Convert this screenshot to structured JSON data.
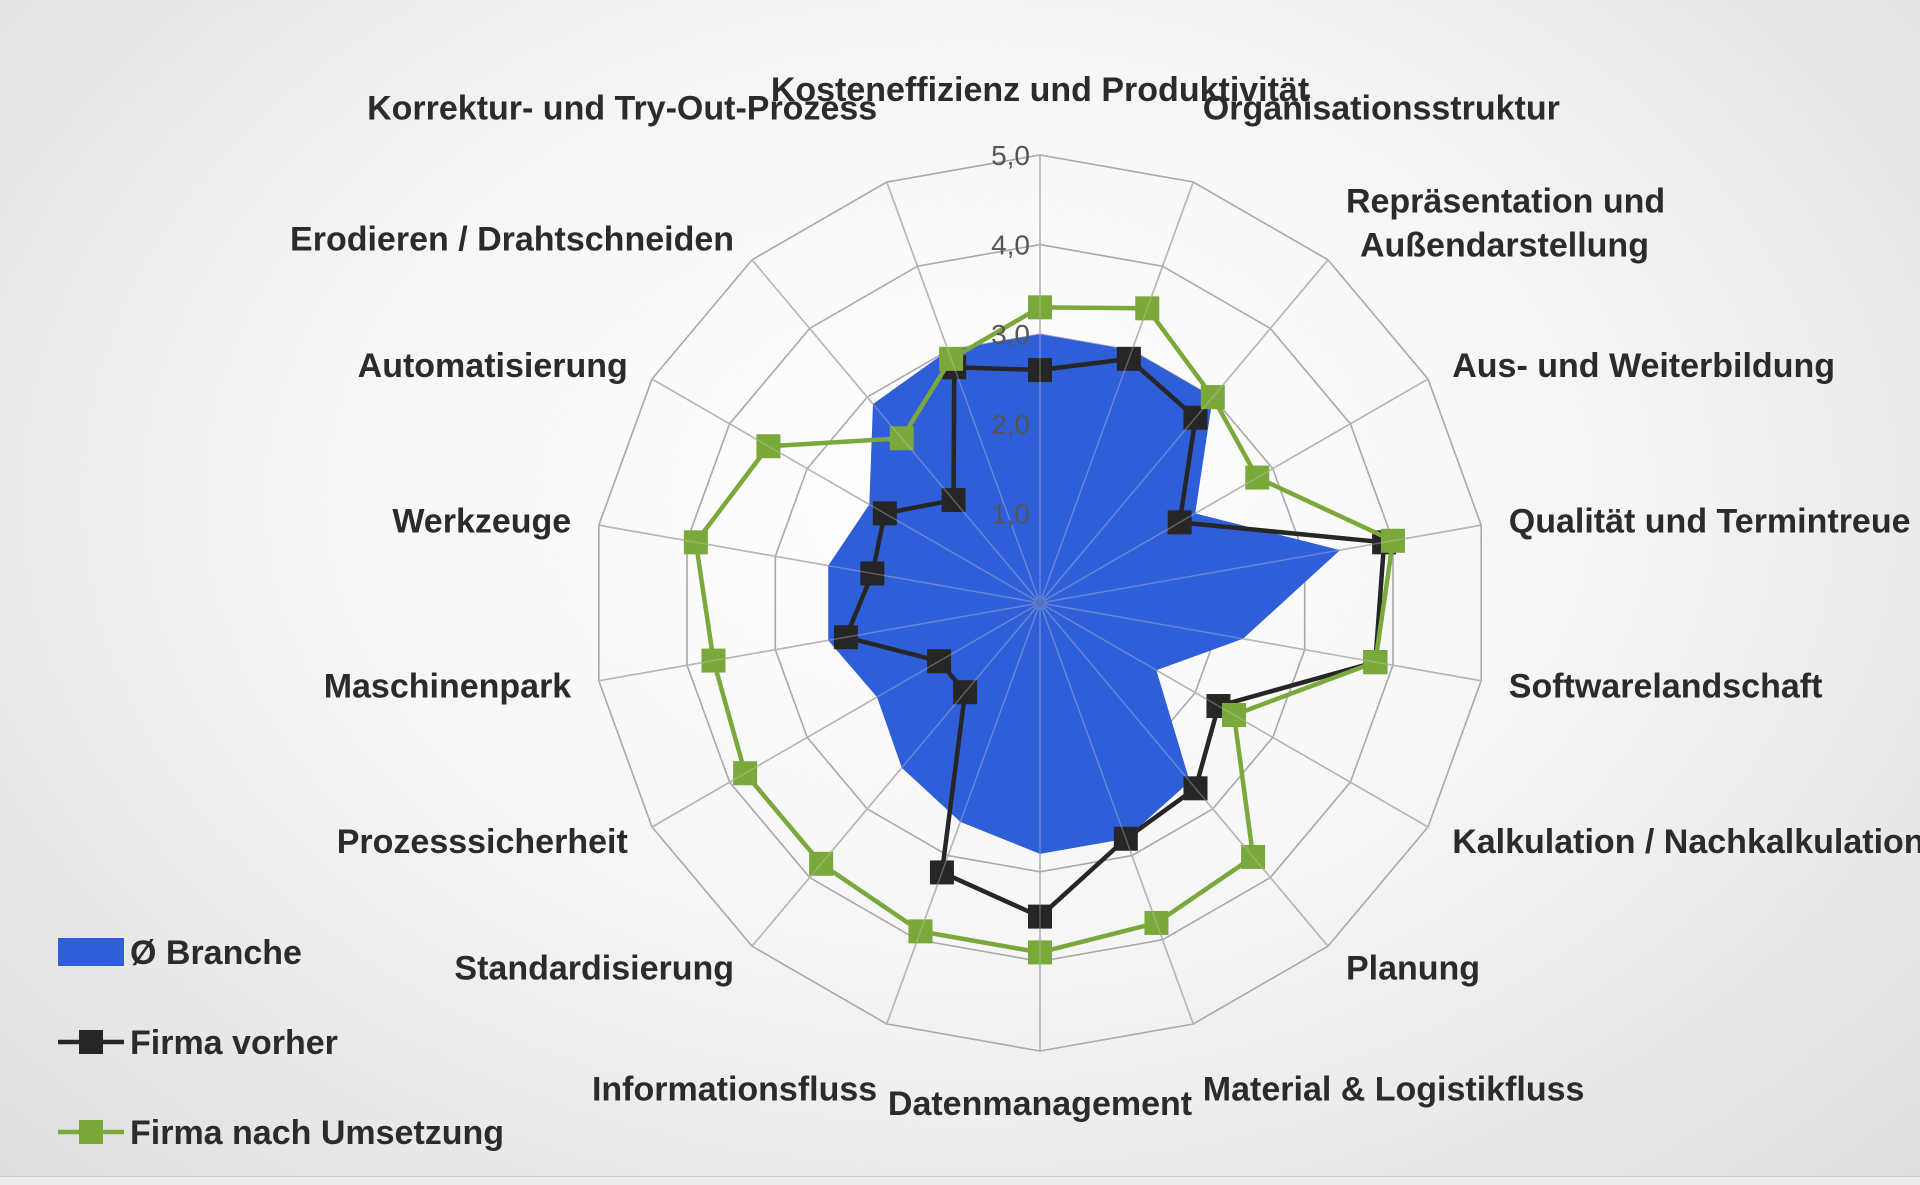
{
  "chart_data": {
    "type": "radar",
    "categories": [
      "Kosteneffizienz und Produktivität",
      "Organisationsstruktur",
      "Repräsentation und Außendarstellung",
      "Aus- und Weiterbildung",
      "Qualität und Termintreue",
      "Softwarelandschaft",
      "Kalkulation / Nachkalkulation",
      "Planung",
      "Material & Logistikfluss",
      "Datenmanagement",
      "Informationsfluss",
      "Standardisierung",
      "Prozesssicherheit",
      "Maschinenpark",
      "Werkzeuge",
      "Automatisierung",
      "Erodieren / Drahtschneiden",
      "Korrektur- und Try-Out-Prozess"
    ],
    "ticks": [
      "1,0",
      "2,0",
      "3,0",
      "4,0",
      "5,0"
    ],
    "rlim": [
      0,
      5
    ],
    "legend_position": "bottom-left",
    "series": [
      {
        "name": "Ø Branche",
        "kind": "area",
        "color": "#2f5fd8",
        "values": [
          3.0,
          3.0,
          3.0,
          2.0,
          3.4,
          2.3,
          1.5,
          2.6,
          2.8,
          2.8,
          2.6,
          2.4,
          2.1,
          2.4,
          2.4,
          2.2,
          2.9,
          3.0
        ]
      },
      {
        "name": "Firma vorher",
        "kind": "line",
        "color": "#262626",
        "values": [
          2.6,
          2.9,
          2.7,
          1.8,
          3.9,
          3.8,
          2.3,
          2.7,
          2.8,
          3.5,
          3.2,
          1.3,
          1.3,
          2.2,
          1.9,
          2.0,
          1.5,
          2.8
        ]
      },
      {
        "name": "Firma nach Umsetzung",
        "kind": "line",
        "color": "#7aa83a",
        "values": [
          3.3,
          3.5,
          3.0,
          2.8,
          4.0,
          3.8,
          2.5,
          3.7,
          3.8,
          3.9,
          3.9,
          3.8,
          3.8,
          3.7,
          3.9,
          3.5,
          2.4,
          2.9
        ]
      }
    ]
  }
}
